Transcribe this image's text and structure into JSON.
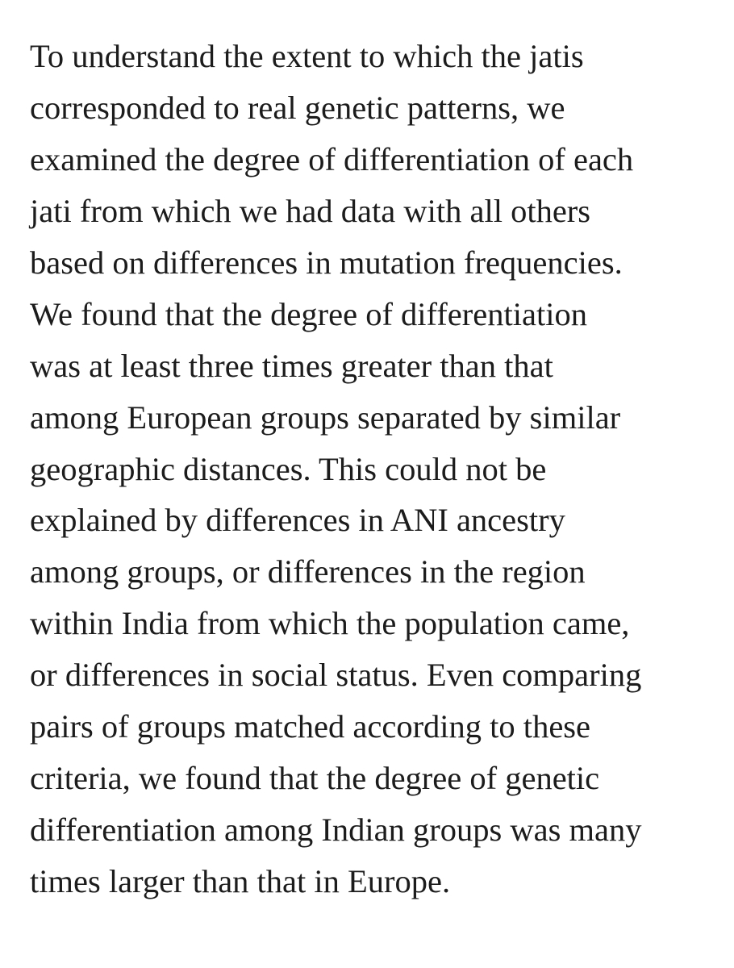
{
  "paragraph": {
    "lines": [
      "To understand the extent to which the jatis",
      "corresponded to real genetic patterns, we",
      "examined the degree of differentiation of each",
      "jati from which we had data with all others",
      "based on differences in mutation frequencies.",
      "We found that the degree of differentiation",
      "was at least three times greater than that",
      "among European groups separated by similar",
      "geographic distances. This could not be",
      "explained by differences in ANI ancestry",
      "among groups, or differences in the region",
      "within India from which the population came,",
      "or differences in social status. Even comparing",
      "pairs of groups matched according to these",
      "criteria, we found that the degree of genetic",
      "differentiation among Indian groups was many",
      "times larger than that in Europe."
    ]
  }
}
